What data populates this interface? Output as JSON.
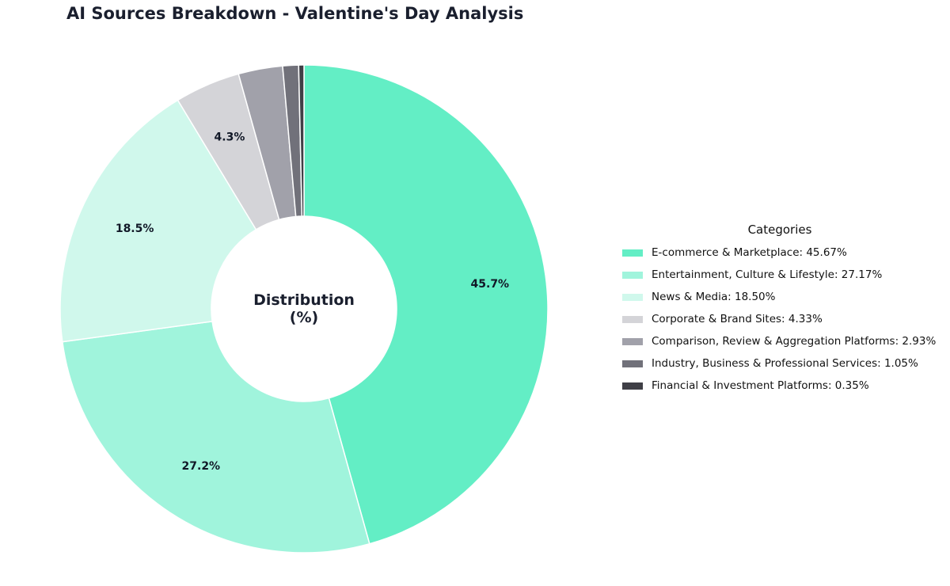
{
  "chart_data": {
    "type": "pie",
    "variant": "donut",
    "title": "AI Sources Breakdown - Valentine's Day Analysis",
    "center_label": [
      "Distribution",
      "(%)"
    ],
    "legend_title": "Categories",
    "legend_position": "right",
    "categories": [
      "E-commerce & Marketplace",
      "Entertainment, Culture & Lifestyle",
      "News & Media",
      "Corporate & Brand Sites",
      "Comparison, Review & Aggregation Platforms",
      "Industry, Business & Professional Services",
      "Financial & Investment Platforms"
    ],
    "values": [
      45.67,
      27.17,
      18.5,
      4.33,
      2.93,
      1.05,
      0.35
    ],
    "value_unit": "%",
    "colors": [
      "#63eec5",
      "#a0f4dc",
      "#d0f8ec",
      "#d4d4d8",
      "#a1a1aa",
      "#71717a",
      "#3f3f46"
    ],
    "legend_entries": [
      "E-commerce & Marketplace: 45.67%",
      "Entertainment, Culture & Lifestyle: 27.17%",
      "News & Media: 18.50%",
      "Corporate & Brand Sites: 4.33%",
      "Comparison, Review & Aggregation Platforms: 2.93%",
      "Industry, Business & Professional Services: 1.05%",
      "Financial & Investment Platforms: 0.35%"
    ],
    "data_labels": [
      "45.7%",
      "27.2%",
      "18.5%",
      "4.3%",
      "",
      "",
      ""
    ]
  }
}
